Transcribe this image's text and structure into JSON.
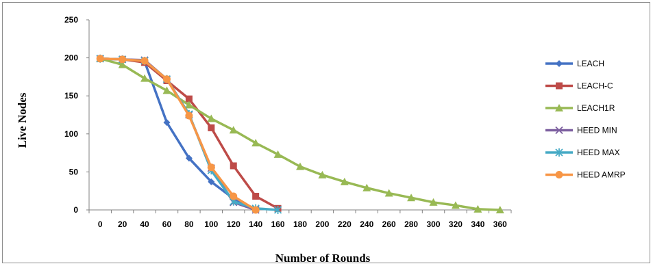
{
  "chart_data": {
    "type": "line",
    "title": "",
    "xlabel": "Number of Rounds",
    "ylabel": "Live Nodes",
    "x": [
      0,
      20,
      40,
      60,
      80,
      100,
      120,
      140,
      160,
      180,
      200,
      220,
      240,
      260,
      280,
      300,
      320,
      340,
      360
    ],
    "xlim": [
      0,
      360
    ],
    "ylim": [
      0,
      250
    ],
    "yticks": [
      0,
      50,
      100,
      150,
      200,
      250
    ],
    "grid": false,
    "legend_position": "right",
    "series": [
      {
        "name": "LEACH",
        "color": "#4472c4",
        "marker": "diamond",
        "values": [
          199,
          198,
          195,
          115,
          68,
          37,
          15,
          1,
          null,
          null,
          null,
          null,
          null,
          null,
          null,
          null,
          null,
          null,
          null
        ]
      },
      {
        "name": "LEACH-C",
        "color": "#be4b48",
        "marker": "square",
        "values": [
          199,
          198,
          194,
          170,
          146,
          108,
          58,
          18,
          2,
          null,
          null,
          null,
          null,
          null,
          null,
          null,
          null,
          null,
          null
        ]
      },
      {
        "name": "LEACH1R",
        "color": "#98b954",
        "marker": "triangle",
        "values": [
          199,
          191,
          173,
          157,
          138,
          120,
          105,
          88,
          73,
          57,
          46,
          37,
          29,
          22,
          16,
          10,
          6,
          1,
          0
        ]
      },
      {
        "name": "HEED MIN",
        "color": "#7d60a0",
        "marker": "x",
        "values": [
          199,
          198,
          197,
          172,
          125,
          55,
          10,
          0,
          null,
          null,
          null,
          null,
          null,
          null,
          null,
          null,
          null,
          null,
          null
        ]
      },
      {
        "name": "HEED MAX",
        "color": "#46aac5",
        "marker": "star",
        "values": [
          199,
          198,
          196,
          172,
          126,
          52,
          11,
          2,
          0,
          null,
          null,
          null,
          null,
          null,
          null,
          null,
          null,
          null,
          null
        ]
      },
      {
        "name": "HEED AMRP",
        "color": "#f79646",
        "marker": "circle",
        "values": [
          199,
          198,
          196,
          172,
          124,
          56,
          18,
          0,
          null,
          null,
          null,
          null,
          null,
          null,
          null,
          null,
          null,
          null,
          null
        ]
      }
    ]
  }
}
